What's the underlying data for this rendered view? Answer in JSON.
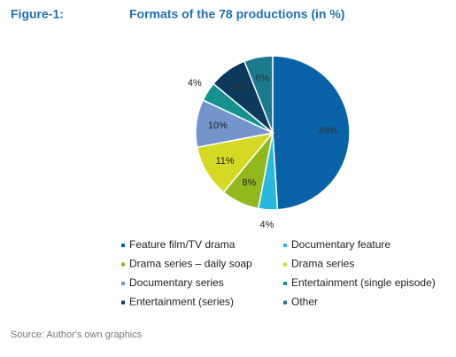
{
  "chart_data": {
    "type": "pie",
    "figure_label": "Figure-1:",
    "title": "Formats of the 78 productions (in %)",
    "categories": [
      "Feature film/TV drama",
      "Documentary feature",
      "Drama series – daily soap",
      "Drama series",
      "Documentary series",
      "Entertainment (single episode)",
      "Entertainment (series)",
      "Other"
    ],
    "values": [
      49,
      4,
      8,
      11,
      10,
      4,
      8,
      6
    ],
    "value_labels": [
      "49%",
      "4%",
      "8%",
      "11%",
      "10%",
      "4%",
      "8%",
      "6%"
    ],
    "colors": [
      "#0a63a8",
      "#29b8e0",
      "#93b81e",
      "#d5d923",
      "#7395cc",
      "#16918f",
      "#0d3a5c",
      "#1a7a8e"
    ],
    "legend": "bottom",
    "source": "Source: Author's own graphics"
  }
}
